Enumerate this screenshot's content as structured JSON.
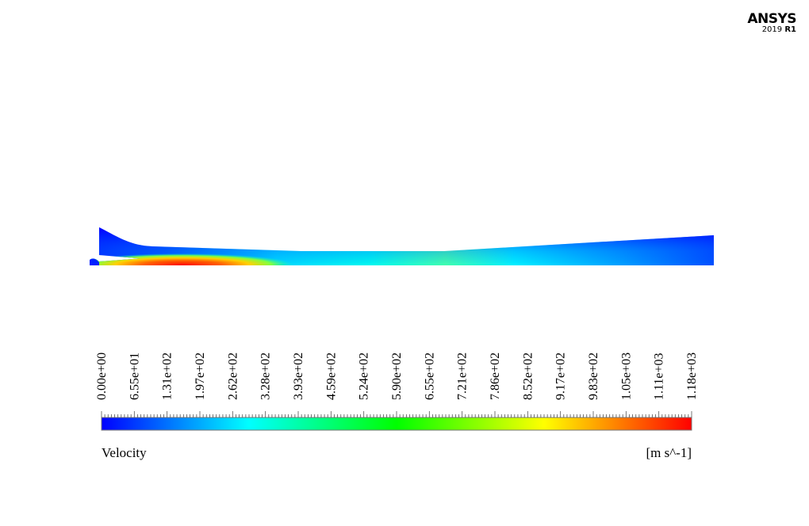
{
  "logo": {
    "brand": "ANSYS",
    "version_year": "2019",
    "version_release": "R1"
  },
  "chart_data": {
    "type": "heatmap",
    "variable": "Velocity",
    "units": "[m s^-1]",
    "colormap": [
      "#0000ff",
      "#00ffff",
      "#00ff00",
      "#ffff00",
      "#ff0000"
    ],
    "range": [
      0,
      1180
    ],
    "colorbar_ticks": [
      "0.00e+00",
      "6.55e+01",
      "1.31e+02",
      "1.97e+02",
      "2.62e+02",
      "3.28e+02",
      "3.93e+02",
      "4.59e+02",
      "5.24e+02",
      "5.90e+02",
      "6.55e+02",
      "7.21e+02",
      "7.86e+02",
      "8.52e+02",
      "9.17e+02",
      "9.83e+02",
      "1.05e+03",
      "1.11e+03",
      "1.18e+03"
    ],
    "legend_placement": "bottom"
  }
}
